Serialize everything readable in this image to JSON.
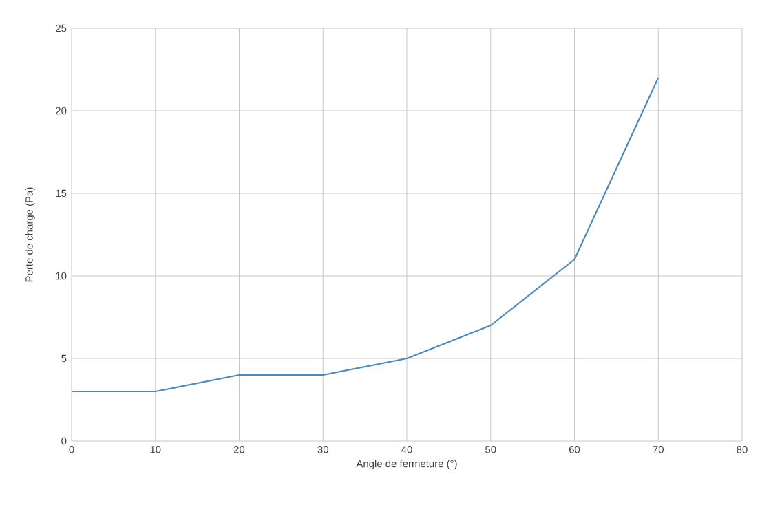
{
  "chart_data": {
    "type": "line",
    "xlabel": "Angle de fermeture (°)",
    "ylabel": "Perte de charge (Pa)",
    "x": [
      0,
      10,
      20,
      30,
      40,
      50,
      60,
      70
    ],
    "series": [
      {
        "color": "#4a89c4",
        "values": [
          3,
          3,
          4,
          4,
          5,
          7,
          11,
          22
        ]
      }
    ],
    "xlim": [
      0,
      80
    ],
    "xticks": [
      0,
      10,
      20,
      30,
      40,
      50,
      60,
      70,
      80
    ],
    "ylim": [
      0,
      25
    ],
    "yticks": [
      0,
      5,
      10,
      15,
      20,
      25
    ],
    "grid": true,
    "marker": "none",
    "line_style": "solid"
  }
}
